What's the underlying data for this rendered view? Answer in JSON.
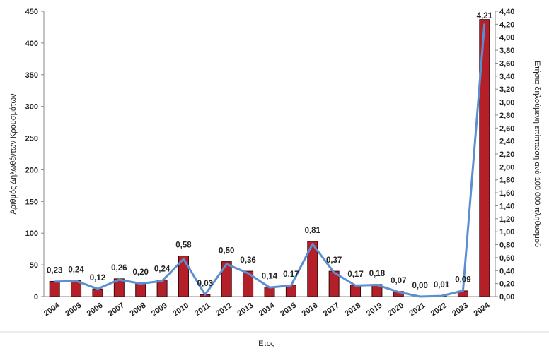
{
  "chart_data": {
    "type": "bar",
    "categories": [
      "2004",
      "2005",
      "2006",
      "2007",
      "2008",
      "2009",
      "2010",
      "2011",
      "2012",
      "2013",
      "2014",
      "2015",
      "2016",
      "2017",
      "2018",
      "2019",
      "2020",
      "2021",
      "2022",
      "2023",
      "2024"
    ],
    "series": [
      {
        "name": "Αριθμός Δηλωθέντων Κρουσμάτων",
        "type": "bar",
        "axis": "left",
        "color": "#b3202a",
        "values": [
          24,
          25,
          12,
          28,
          21,
          26,
          64,
          3,
          55,
          40,
          15,
          18,
          87,
          40,
          18,
          19,
          8,
          0,
          1,
          9,
          437
        ]
      },
      {
        "name": "Ετήσια δηλούμενη επίπτωση ανά 100.000 πληθυσμού",
        "type": "line",
        "axis": "right",
        "color": "#5b8fcf",
        "values": [
          0.23,
          0.24,
          0.12,
          0.26,
          0.2,
          0.24,
          0.58,
          0.03,
          0.5,
          0.36,
          0.14,
          0.17,
          0.81,
          0.37,
          0.17,
          0.18,
          0.07,
          0.0,
          0.01,
          0.09,
          4.21
        ],
        "labels": [
          "0,23",
          "0,24",
          "0,12",
          "0,26",
          "0,20",
          "0,24",
          "0,58",
          "0,03",
          "0,50",
          "0,36",
          "0,14",
          "0,17",
          "0,81",
          "0,37",
          "0,17",
          "0,18",
          "0,07",
          "0,00",
          "0,01",
          "0,09",
          "4,21"
        ]
      }
    ],
    "xlabel": "Έτος",
    "ylabel": "Αριθμός Δηλωθέντων Κρουσμάτων",
    "ylabel_right": "Ετήσια δηλούμενη επίπτωση ανά 100.000 πληθυσμού",
    "ylim": [
      0,
      450
    ],
    "ylim_right": [
      0,
      4.4
    ],
    "yticks": [
      "0",
      "50",
      "100",
      "150",
      "200",
      "250",
      "300",
      "350",
      "400",
      "450"
    ],
    "yticks_right": [
      "0,00",
      "0,20",
      "0,40",
      "0,60",
      "0,80",
      "1,00",
      "1,20",
      "1,40",
      "1,60",
      "1,80",
      "2,00",
      "2,20",
      "2,40",
      "2,60",
      "2,80",
      "3,00",
      "3,20",
      "3,40",
      "3,60",
      "3,80",
      "4,00",
      "4,20",
      "4,40"
    ],
    "grid": false
  }
}
